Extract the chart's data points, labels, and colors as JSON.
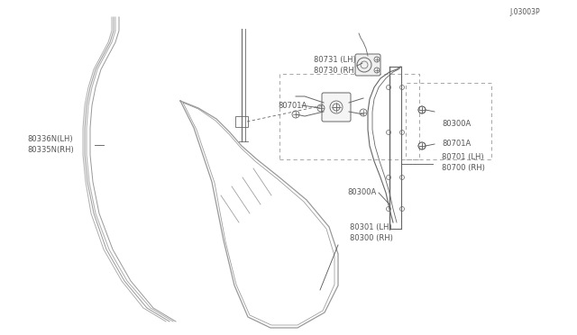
{
  "bg_color": "#ffffff",
  "line_color": "#999999",
  "dark_line": "#666666",
  "text_color": "#555555",
  "part_number_code": "J.03003P",
  "labels": {
    "80300_RH": "80300 (RH)",
    "80301_LH": "80301 (LH)",
    "80300A_top": "80300A",
    "80300A_bot": "80300A",
    "80700_RH": "80700 (RH)",
    "80701_LH": "80701 (LH)",
    "80701A_left": "80701A",
    "80701A_right": "80701A",
    "80335N_RH": "80335N(RH)",
    "80336N_LH": "80336N(LH)",
    "80730_RH": "80730 (RH)",
    "80731_LH": "80731 (LH)"
  }
}
